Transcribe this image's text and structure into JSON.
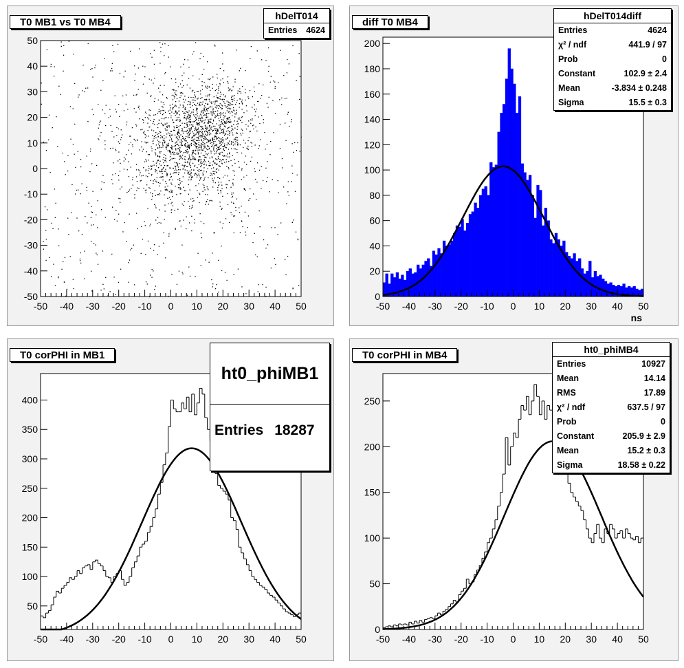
{
  "pads": [
    {
      "title": "T0 MB1 vs T0 MB4",
      "stats": {
        "name": "hDelT014",
        "rows": [
          {
            "label": "Entries",
            "value": "4624"
          }
        ]
      }
    },
    {
      "title": "diff T0 MB4",
      "stats": {
        "name": "hDelT014diff",
        "rows": [
          {
            "label": "Entries",
            "value": "4624"
          },
          {
            "label": "χ² / ndf",
            "value": "441.9 / 97"
          },
          {
            "label": "Prob",
            "value": "0"
          },
          {
            "label": "Constant",
            "value": "102.9 ± 2.4"
          },
          {
            "label": "Mean",
            "value": "-3.834 ± 0.248"
          },
          {
            "label": "Sigma",
            "value": "15.5 ± 0.3"
          }
        ]
      }
    },
    {
      "title": "T0 corPHI in MB1",
      "stats": {
        "name": "ht0_phiMB1",
        "rows": [
          {
            "label": "Entries",
            "value": "18287"
          }
        ]
      }
    },
    {
      "title": "T0 corPHI in MB4",
      "stats": {
        "name": "ht0_phiMB4",
        "rows": [
          {
            "label": "Entries",
            "value": "10927"
          },
          {
            "label": "Mean",
            "value": "14.14"
          },
          {
            "label": "RMS",
            "value": "17.89"
          },
          {
            "label": "χ² / ndf",
            "value": "637.5 / 97"
          },
          {
            "label": "Prob",
            "value": "0"
          },
          {
            "label": "Constant",
            "value": "205.9 ± 2.9"
          },
          {
            "label": "Mean",
            "value": "15.2 ± 0.3"
          },
          {
            "label": "Sigma",
            "value": "18.58 ± 0.22"
          }
        ]
      }
    }
  ],
  "chart_data": [
    {
      "type": "scatter",
      "title": "T0 MB1 vs T0 MB4",
      "xlim": [
        -50,
        50
      ],
      "ylim": [
        -50,
        50
      ],
      "x_ticks": [
        -50,
        -40,
        -30,
        -20,
        -10,
        0,
        10,
        20,
        30,
        40,
        50
      ],
      "y_ticks": [
        -50,
        -40,
        -30,
        -20,
        -10,
        0,
        10,
        20,
        30,
        40,
        50
      ],
      "entries": 4624,
      "clusters": [
        {
          "center": [
            5,
            8
          ],
          "sigma": [
            12,
            12
          ],
          "weight": 0.5
        },
        {
          "center": [
            15,
            18
          ],
          "sigma": [
            8,
            8
          ],
          "weight": 0.25
        }
      ],
      "background_fraction": 0.25,
      "color": "#000000"
    },
    {
      "type": "bar",
      "title": "diff T0 MB4",
      "xlabel": "ns",
      "xlim": [
        -50,
        50
      ],
      "ylim": [
        0,
        205
      ],
      "x_ticks": [
        -50,
        -40,
        -30,
        -20,
        -10,
        0,
        10,
        20,
        30,
        40,
        50
      ],
      "y_ticks": [
        0,
        20,
        40,
        60,
        80,
        100,
        120,
        140,
        160,
        180,
        200
      ],
      "fill_color": "#0000ff",
      "fit": {
        "constant": 102.9,
        "mean": -3.834,
        "sigma": 15.5
      },
      "bins": [
        [
          -49.5,
          11
        ],
        [
          -48.5,
          18
        ],
        [
          -47.5,
          10
        ],
        [
          -46.5,
          18
        ],
        [
          -45.5,
          15
        ],
        [
          -44.5,
          19
        ],
        [
          -43.5,
          14
        ],
        [
          -42.5,
          17
        ],
        [
          -41.5,
          13
        ],
        [
          -40.5,
          20
        ],
        [
          -39.5,
          22
        ],
        [
          -38.5,
          18
        ],
        [
          -37.5,
          19
        ],
        [
          -36.5,
          25
        ],
        [
          -35.5,
          22
        ],
        [
          -34.5,
          25
        ],
        [
          -33.5,
          28
        ],
        [
          -32.5,
          30
        ],
        [
          -31.5,
          24
        ],
        [
          -30.5,
          36
        ],
        [
          -29.5,
          33
        ],
        [
          -28.5,
          38
        ],
        [
          -27.5,
          34
        ],
        [
          -26.5,
          44
        ],
        [
          -25.5,
          40
        ],
        [
          -24.5,
          41
        ],
        [
          -23.5,
          44
        ],
        [
          -22.5,
          50
        ],
        [
          -21.5,
          56
        ],
        [
          -20.5,
          55
        ],
        [
          -19.5,
          61
        ],
        [
          -18.5,
          52
        ],
        [
          -17.5,
          58
        ],
        [
          -16.5,
          65
        ],
        [
          -15.5,
          67
        ],
        [
          -14.5,
          74
        ],
        [
          -13.5,
          70
        ],
        [
          -12.5,
          80
        ],
        [
          -11.5,
          85
        ],
        [
          -10.5,
          87
        ],
        [
          -9.5,
          80
        ],
        [
          -8.5,
          106
        ],
        [
          -7.5,
          102
        ],
        [
          -6.5,
          104
        ],
        [
          -5.5,
          130
        ],
        [
          -4.5,
          145
        ],
        [
          -3.5,
          152
        ],
        [
          -2.5,
          172
        ],
        [
          -1.5,
          196
        ],
        [
          -0.5,
          180
        ],
        [
          0.5,
          168
        ],
        [
          1.5,
          145
        ],
        [
          2.5,
          158
        ],
        [
          3.5,
          105
        ],
        [
          4.5,
          98
        ],
        [
          5.5,
          92
        ],
        [
          6.5,
          96
        ],
        [
          7.5,
          80
        ],
        [
          8.5,
          62
        ],
        [
          9.5,
          88
        ],
        [
          10.5,
          84
        ],
        [
          11.5,
          56
        ],
        [
          12.5,
          70
        ],
        [
          13.5,
          60
        ],
        [
          14.5,
          45
        ],
        [
          15.5,
          42
        ],
        [
          16.5,
          50
        ],
        [
          17.5,
          45
        ],
        [
          18.5,
          40
        ],
        [
          19.5,
          44
        ],
        [
          20.5,
          35
        ],
        [
          21.5,
          32
        ],
        [
          22.5,
          30
        ],
        [
          23.5,
          34
        ],
        [
          24.5,
          28
        ],
        [
          25.5,
          30
        ],
        [
          26.5,
          22
        ],
        [
          27.5,
          18
        ],
        [
          28.5,
          20
        ],
        [
          29.5,
          28
        ],
        [
          30.5,
          15
        ],
        [
          31.5,
          20
        ],
        [
          32.5,
          16
        ],
        [
          33.5,
          17
        ],
        [
          34.5,
          14
        ],
        [
          35.5,
          12
        ],
        [
          36.5,
          10
        ],
        [
          37.5,
          11
        ],
        [
          38.5,
          9
        ],
        [
          39.5,
          8
        ],
        [
          40.5,
          9
        ],
        [
          41.5,
          8
        ],
        [
          42.5,
          10
        ],
        [
          43.5,
          7
        ],
        [
          44.5,
          8
        ],
        [
          45.5,
          7
        ],
        [
          46.5,
          8
        ],
        [
          47.5,
          6
        ],
        [
          48.5,
          5
        ],
        [
          49.5,
          6
        ]
      ]
    },
    {
      "type": "line",
      "title": "T0 corPHI in MB1",
      "xlim": [
        -50,
        50
      ],
      "ylim": [
        10,
        445
      ],
      "x_ticks": [
        -50,
        -40,
        -30,
        -20,
        -10,
        0,
        10,
        20,
        30,
        40,
        50
      ],
      "y_ticks": [
        50,
        100,
        150,
        200,
        250,
        300,
        350,
        400
      ],
      "fit": {
        "constant": 318,
        "mean": 8,
        "sigma": 19
      },
      "bins": [
        [
          -49.5,
          33
        ],
        [
          -48.5,
          30
        ],
        [
          -47.5,
          38
        ],
        [
          -46.5,
          42
        ],
        [
          -45.5,
          52
        ],
        [
          -44.5,
          65
        ],
        [
          -43.5,
          75
        ],
        [
          -42.5,
          72
        ],
        [
          -41.5,
          80
        ],
        [
          -40.5,
          85
        ],
        [
          -39.5,
          90
        ],
        [
          -38.5,
          98
        ],
        [
          -37.5,
          95
        ],
        [
          -36.5,
          100
        ],
        [
          -35.5,
          110
        ],
        [
          -34.5,
          105
        ],
        [
          -33.5,
          115
        ],
        [
          -32.5,
          118
        ],
        [
          -31.5,
          120
        ],
        [
          -30.5,
          112
        ],
        [
          -29.5,
          125
        ],
        [
          -28.5,
          128
        ],
        [
          -27.5,
          122
        ],
        [
          -26.5,
          118
        ],
        [
          -25.5,
          110
        ],
        [
          -24.5,
          100
        ],
        [
          -23.5,
          98
        ],
        [
          -22.5,
          90
        ],
        [
          -21.5,
          100
        ],
        [
          -20.5,
          105
        ],
        [
          -19.5,
          110
        ],
        [
          -18.5,
          95
        ],
        [
          -17.5,
          85
        ],
        [
          -16.5,
          90
        ],
        [
          -15.5,
          100
        ],
        [
          -14.5,
          115
        ],
        [
          -13.5,
          125
        ],
        [
          -12.5,
          135
        ],
        [
          -11.5,
          150
        ],
        [
          -10.5,
          155
        ],
        [
          -9.5,
          160
        ],
        [
          -8.5,
          175
        ],
        [
          -7.5,
          185
        ],
        [
          -6.5,
          200
        ],
        [
          -5.5,
          215
        ],
        [
          -4.5,
          240
        ],
        [
          -3.5,
          260
        ],
        [
          -2.5,
          290
        ],
        [
          -1.5,
          310
        ],
        [
          -0.5,
          355
        ],
        [
          0.5,
          400
        ],
        [
          1.5,
          385
        ],
        [
          2.5,
          380
        ],
        [
          3.5,
          380
        ],
        [
          4.5,
          395
        ],
        [
          5.5,
          385
        ],
        [
          6.5,
          405
        ],
        [
          7.5,
          380
        ],
        [
          8.5,
          410
        ],
        [
          9.5,
          375
        ],
        [
          10.5,
          395
        ],
        [
          11.5,
          420
        ],
        [
          12.5,
          410
        ],
        [
          13.5,
          370
        ],
        [
          14.5,
          350
        ],
        [
          15.5,
          330
        ],
        [
          16.5,
          300
        ],
        [
          17.5,
          275
        ],
        [
          18.5,
          255
        ],
        [
          19.5,
          250
        ],
        [
          20.5,
          245
        ],
        [
          21.5,
          240
        ],
        [
          22.5,
          230
        ],
        [
          23.5,
          200
        ],
        [
          24.5,
          195
        ],
        [
          25.5,
          180
        ],
        [
          26.5,
          150
        ],
        [
          27.5,
          140
        ],
        [
          28.5,
          130
        ],
        [
          29.5,
          120
        ],
        [
          30.5,
          110
        ],
        [
          31.5,
          100
        ],
        [
          32.5,
          95
        ],
        [
          33.5,
          90
        ],
        [
          34.5,
          85
        ],
        [
          35.5,
          82
        ],
        [
          36.5,
          78
        ],
        [
          37.5,
          72
        ],
        [
          38.5,
          68
        ],
        [
          39.5,
          65
        ],
        [
          40.5,
          60
        ],
        [
          41.5,
          55
        ],
        [
          42.5,
          50
        ],
        [
          43.5,
          45
        ],
        [
          44.5,
          40
        ],
        [
          45.5,
          38
        ],
        [
          46.5,
          35
        ],
        [
          47.5,
          32
        ],
        [
          48.5,
          35
        ],
        [
          49.5,
          38
        ]
      ]
    },
    {
      "type": "line",
      "title": "T0 corPHI in MB4",
      "xlim": [
        -50,
        50
      ],
      "ylim": [
        0,
        280
      ],
      "x_ticks": [
        -50,
        -40,
        -30,
        -20,
        -10,
        0,
        10,
        20,
        30,
        40,
        50
      ],
      "y_ticks": [
        0,
        50,
        100,
        150,
        200,
        250
      ],
      "fit": {
        "constant": 205.9,
        "mean": 15.2,
        "sigma": 18.58
      },
      "bins": [
        [
          -49.5,
          2
        ],
        [
          -48.5,
          3
        ],
        [
          -47.5,
          4
        ],
        [
          -46.5,
          3
        ],
        [
          -45.5,
          5
        ],
        [
          -44.5,
          4
        ],
        [
          -43.5,
          6
        ],
        [
          -42.5,
          5
        ],
        [
          -41.5,
          6
        ],
        [
          -40.5,
          5
        ],
        [
          -39.5,
          8
        ],
        [
          -38.5,
          6
        ],
        [
          -37.5,
          9
        ],
        [
          -36.5,
          7
        ],
        [
          -35.5,
          10
        ],
        [
          -34.5,
          8
        ],
        [
          -33.5,
          11
        ],
        [
          -32.5,
          12
        ],
        [
          -31.5,
          13
        ],
        [
          -30.5,
          12
        ],
        [
          -29.5,
          15
        ],
        [
          -28.5,
          18
        ],
        [
          -27.5,
          16
        ],
        [
          -26.5,
          20
        ],
        [
          -25.5,
          22
        ],
        [
          -24.5,
          25
        ],
        [
          -23.5,
          28
        ],
        [
          -22.5,
          32
        ],
        [
          -21.5,
          30
        ],
        [
          -20.5,
          38
        ],
        [
          -19.5,
          42
        ],
        [
          -18.5,
          45
        ],
        [
          -17.5,
          55
        ],
        [
          -16.5,
          50
        ],
        [
          -15.5,
          52
        ],
        [
          -14.5,
          60
        ],
        [
          -13.5,
          65
        ],
        [
          -12.5,
          70
        ],
        [
          -11.5,
          78
        ],
        [
          -10.5,
          85
        ],
        [
          -9.5,
          95
        ],
        [
          -8.5,
          100
        ],
        [
          -7.5,
          110
        ],
        [
          -6.5,
          120
        ],
        [
          -5.5,
          135
        ],
        [
          -4.5,
          150
        ],
        [
          -3.5,
          170
        ],
        [
          -2.5,
          210
        ],
        [
          -1.5,
          180
        ],
        [
          -0.5,
          200
        ],
        [
          0.5,
          215
        ],
        [
          1.5,
          210
        ],
        [
          2.5,
          230
        ],
        [
          3.5,
          245
        ],
        [
          4.5,
          240
        ],
        [
          5.5,
          255
        ],
        [
          6.5,
          235
        ],
        [
          7.5,
          250
        ],
        [
          8.5,
          268
        ],
        [
          9.5,
          255
        ],
        [
          10.5,
          235
        ],
        [
          11.5,
          250
        ],
        [
          12.5,
          230
        ],
        [
          13.5,
          245
        ],
        [
          14.5,
          240
        ],
        [
          15.5,
          225
        ],
        [
          16.5,
          230
        ],
        [
          17.5,
          240
        ],
        [
          18.5,
          225
        ],
        [
          19.5,
          200
        ],
        [
          20.5,
          175
        ],
        [
          21.5,
          160
        ],
        [
          22.5,
          150
        ],
        [
          23.5,
          145
        ],
        [
          24.5,
          140
        ],
        [
          25.5,
          135
        ],
        [
          26.5,
          130
        ],
        [
          27.5,
          120
        ],
        [
          28.5,
          110
        ],
        [
          29.5,
          100
        ],
        [
          30.5,
          95
        ],
        [
          31.5,
          105
        ],
        [
          32.5,
          115
        ],
        [
          33.5,
          100
        ],
        [
          34.5,
          95
        ],
        [
          35.5,
          110
        ],
        [
          36.5,
          105
        ],
        [
          37.5,
          115
        ],
        [
          38.5,
          110
        ],
        [
          39.5,
          100
        ],
        [
          40.5,
          105
        ],
        [
          41.5,
          108
        ],
        [
          42.5,
          100
        ],
        [
          43.5,
          110
        ],
        [
          44.5,
          105
        ],
        [
          45.5,
          100
        ],
        [
          46.5,
          98
        ],
        [
          47.5,
          102
        ],
        [
          48.5,
          95
        ],
        [
          49.5,
          100
        ]
      ]
    }
  ]
}
